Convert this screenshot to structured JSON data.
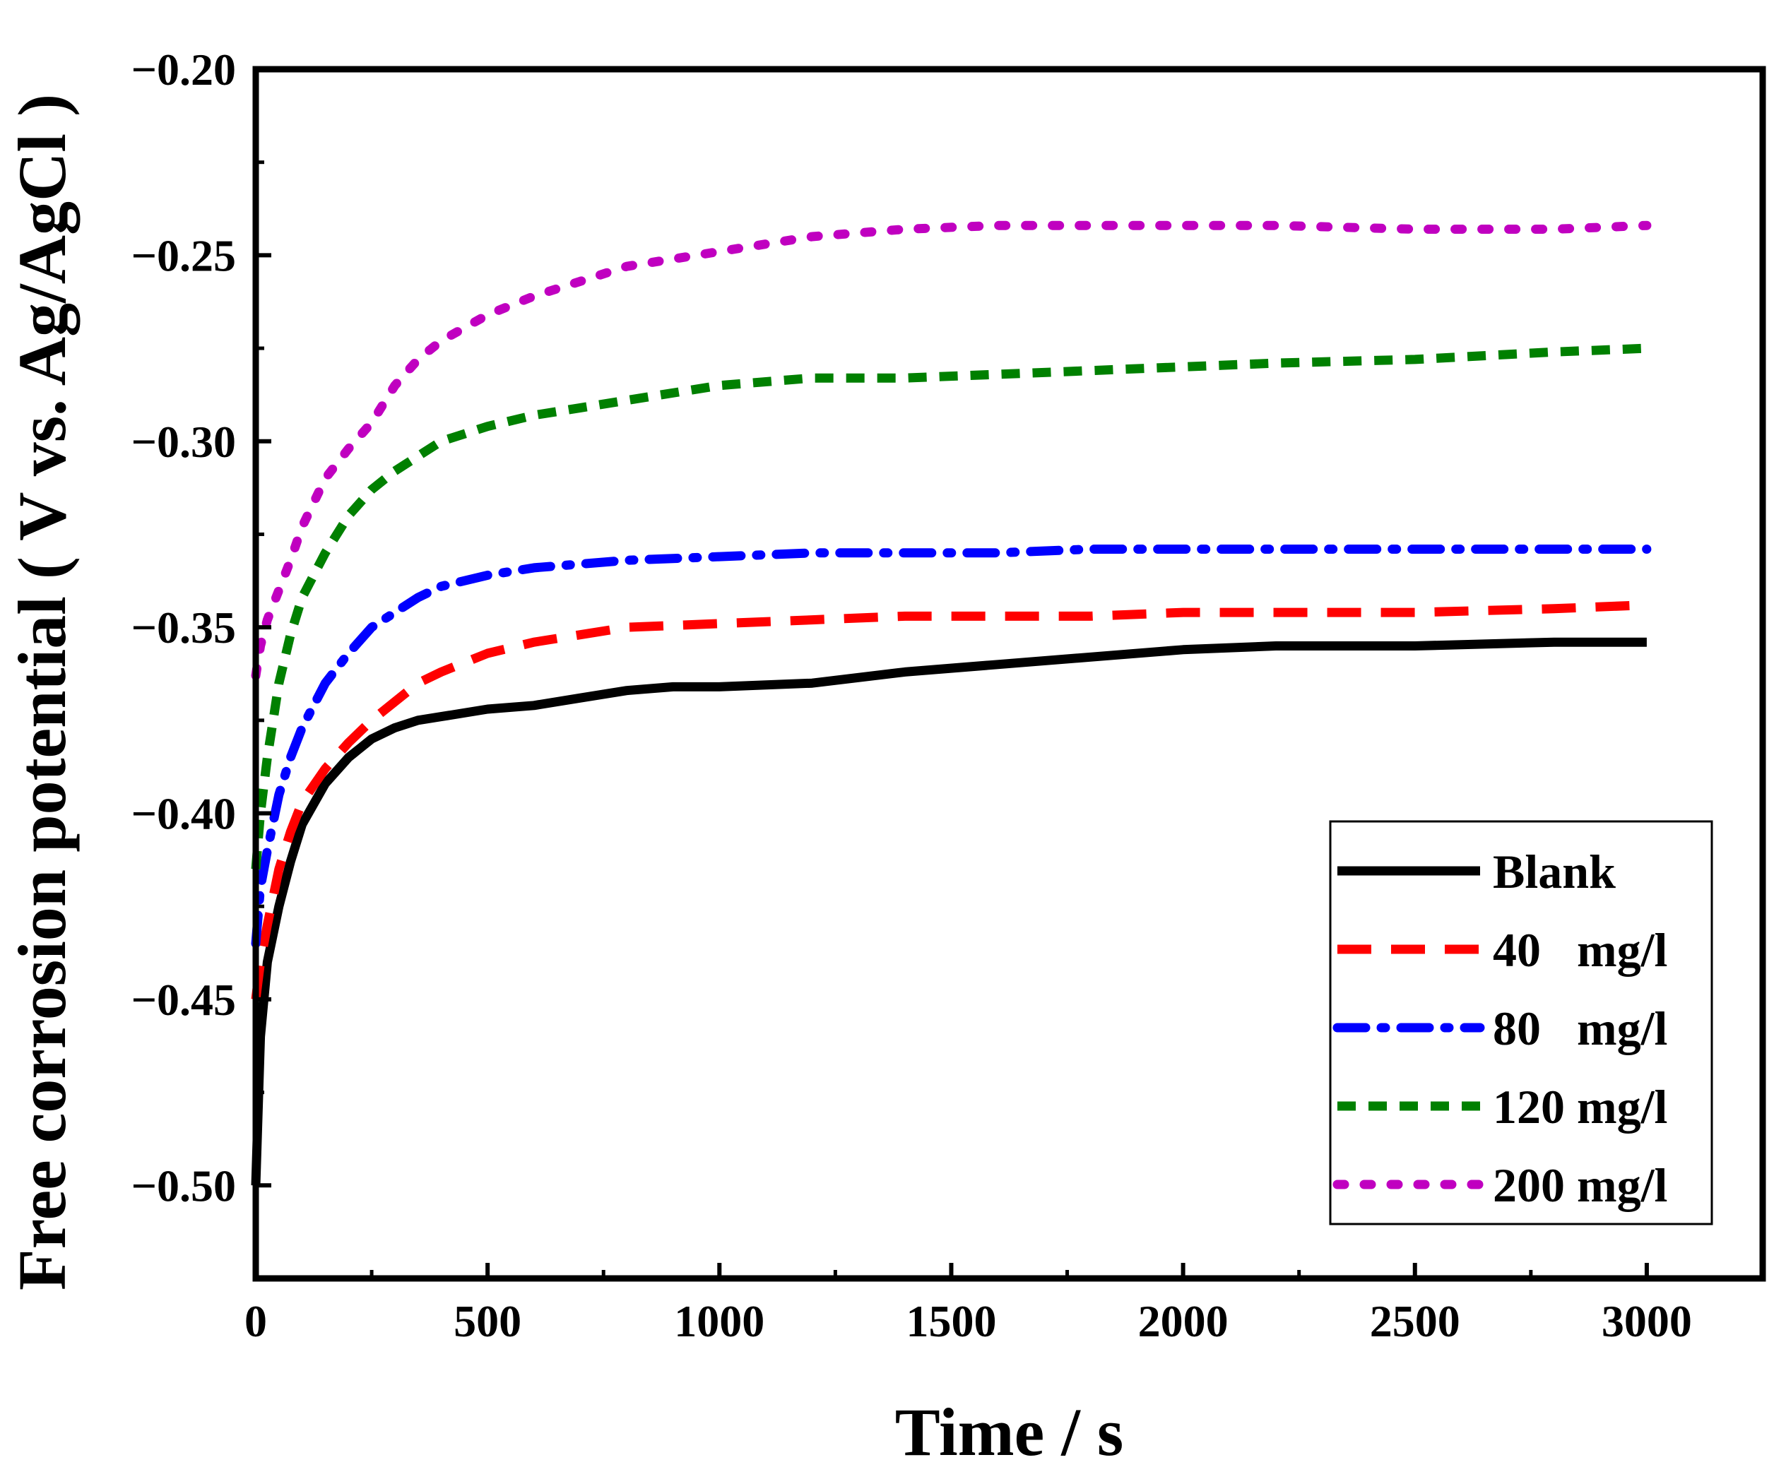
{
  "chart_data": {
    "type": "line",
    "xlabel": "Time / s",
    "ylabel": "Free corrosion potential ( V vs. Ag/AgCl )",
    "xlim": [
      0,
      3250
    ],
    "ylim": [
      -0.525,
      -0.2
    ],
    "x_ticks": [
      0,
      500,
      1000,
      1500,
      2000,
      2500,
      3000
    ],
    "x_tick_labels": [
      "0",
      "500",
      "1000",
      "1500",
      "2000",
      "2500",
      "3000"
    ],
    "y_ticks": [
      -0.2,
      -0.25,
      -0.3,
      -0.35,
      -0.4,
      -0.45,
      -0.5
    ],
    "y_tick_labels": [
      "−0.20",
      "−0.25",
      "−0.30",
      "−0.35",
      "−0.40",
      "−0.45",
      "−0.50"
    ],
    "grid": false,
    "legend_position": "lower-right",
    "series": [
      {
        "name": "Blank",
        "color": "#000000",
        "style": "solid",
        "x": [
          0,
          10,
          25,
          50,
          75,
          100,
          150,
          200,
          250,
          300,
          350,
          400,
          500,
          600,
          700,
          800,
          900,
          1000,
          1200,
          1400,
          1600,
          1800,
          2000,
          2200,
          2500,
          2800,
          3000
        ],
        "y": [
          -0.5,
          -0.46,
          -0.44,
          -0.425,
          -0.413,
          -0.403,
          -0.392,
          -0.385,
          -0.38,
          -0.377,
          -0.375,
          -0.374,
          -0.372,
          -0.371,
          -0.369,
          -0.367,
          -0.366,
          -0.366,
          -0.365,
          -0.362,
          -0.36,
          -0.358,
          -0.356,
          -0.355,
          -0.355,
          -0.354,
          -0.354
        ]
      },
      {
        "name": "40   mg/l",
        "color": "#ff0000",
        "style": "dash",
        "x": [
          0,
          10,
          25,
          50,
          75,
          100,
          150,
          200,
          250,
          300,
          350,
          400,
          500,
          600,
          700,
          800,
          1000,
          1200,
          1400,
          1600,
          1800,
          2000,
          2200,
          2500,
          2800,
          3000
        ],
        "y": [
          -0.45,
          -0.44,
          -0.43,
          -0.415,
          -0.405,
          -0.397,
          -0.388,
          -0.381,
          -0.375,
          -0.37,
          -0.365,
          -0.362,
          -0.357,
          -0.354,
          -0.352,
          -0.35,
          -0.349,
          -0.348,
          -0.347,
          -0.347,
          -0.347,
          -0.346,
          -0.346,
          -0.346,
          -0.345,
          -0.344
        ]
      },
      {
        "name": "80   mg/l",
        "color": "#0000ff",
        "style": "dashdot",
        "x": [
          0,
          10,
          25,
          50,
          75,
          100,
          150,
          200,
          250,
          300,
          350,
          400,
          500,
          600,
          700,
          800,
          1000,
          1200,
          1400,
          1600,
          1800,
          2000,
          2200,
          2500,
          2800,
          3000
        ],
        "y": [
          -0.435,
          -0.42,
          -0.41,
          -0.395,
          -0.385,
          -0.377,
          -0.365,
          -0.357,
          -0.35,
          -0.346,
          -0.342,
          -0.339,
          -0.336,
          -0.334,
          -0.333,
          -0.332,
          -0.331,
          -0.33,
          -0.33,
          -0.33,
          -0.329,
          -0.329,
          -0.329,
          -0.329,
          -0.329,
          -0.329
        ]
      },
      {
        "name": "120 mg/l",
        "color": "#008000",
        "style": "shortdash",
        "x": [
          0,
          10,
          25,
          50,
          75,
          100,
          150,
          200,
          250,
          300,
          350,
          400,
          500,
          600,
          700,
          800,
          1000,
          1200,
          1400,
          1600,
          1800,
          2000,
          2200,
          2500,
          2800,
          3000
        ],
        "y": [
          -0.415,
          -0.4,
          -0.385,
          -0.365,
          -0.352,
          -0.342,
          -0.33,
          -0.32,
          -0.313,
          -0.308,
          -0.304,
          -0.3,
          -0.296,
          -0.293,
          -0.291,
          -0.289,
          -0.285,
          -0.283,
          -0.283,
          -0.282,
          -0.281,
          -0.28,
          -0.279,
          -0.278,
          -0.276,
          -0.275
        ]
      },
      {
        "name": "200 mg/l",
        "color": "#c000c0",
        "style": "dot",
        "x": [
          0,
          10,
          25,
          50,
          75,
          100,
          150,
          200,
          250,
          300,
          350,
          400,
          500,
          600,
          700,
          800,
          900,
          1000,
          1200,
          1400,
          1600,
          1800,
          2000,
          2200,
          2500,
          2800,
          3000
        ],
        "y": [
          -0.363,
          -0.355,
          -0.348,
          -0.34,
          -0.332,
          -0.323,
          -0.31,
          -0.302,
          -0.295,
          -0.285,
          -0.278,
          -0.273,
          -0.266,
          -0.261,
          -0.257,
          -0.253,
          -0.251,
          -0.249,
          -0.245,
          -0.243,
          -0.242,
          -0.242,
          -0.242,
          -0.242,
          -0.243,
          -0.243,
          -0.242
        ]
      }
    ]
  }
}
